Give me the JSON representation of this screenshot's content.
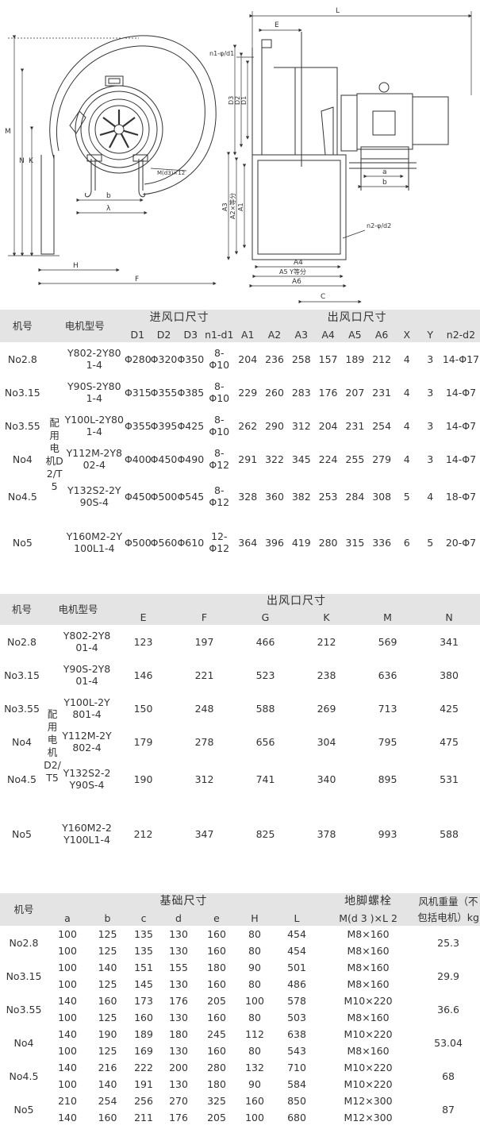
{
  "drawing": {
    "labels": {
      "L": "L",
      "E": "E",
      "n1d1": "n1-φ/d1",
      "D3": "D3",
      "D2": "D2",
      "D1": "D1",
      "M": "M",
      "N": "N",
      "K": "K",
      "Md3": "M(d3)×12",
      "b": "b",
      "lambda": "λ",
      "H": "H",
      "F": "F",
      "A3": "A3",
      "A2": "A2×等分",
      "A1": "A1",
      "a": "a",
      "b2": "b",
      "n2d2": "n2-φ/d2",
      "A4": "A4",
      "A5": "A5 Y等分",
      "A6": "A6",
      "C": "C"
    }
  },
  "table1": {
    "headers": {
      "model": "机号",
      "motor": "电机型号",
      "inlet": "进风口尺寸",
      "outlet": "出风口尺寸",
      "cols": [
        "D1",
        "D2",
        "D3",
        "n1-d1",
        "A1",
        "A2",
        "A3",
        "A4",
        "A5",
        "A6",
        "X",
        "Y",
        "n2-d2"
      ]
    },
    "config": "配用电机D2/T5",
    "rows": [
      {
        "model": "No2.8",
        "motor": "Y802-2Y801-4",
        "vals": [
          "Φ280",
          "Φ320",
          "Φ350",
          "8-Φ10",
          "204",
          "236",
          "258",
          "157",
          "189",
          "212",
          "4",
          "3",
          "14-Φ17"
        ]
      },
      {
        "model": "No3.15",
        "motor": "Y90S-2Y801-4",
        "vals": [
          "Φ315",
          "Φ355",
          "Φ385",
          "8-Φ10",
          "229",
          "260",
          "283",
          "176",
          "207",
          "231",
          "4",
          "3",
          "14-Φ7"
        ]
      },
      {
        "model": "No3.55",
        "motor": "Y100L-2Y801-4",
        "vals": [
          "Φ355",
          "Φ395",
          "Φ425",
          "8-Φ10",
          "262",
          "290",
          "312",
          "204",
          "231",
          "254",
          "4",
          "3",
          "14-Φ7"
        ]
      },
      {
        "model": "No4",
        "motor": "Y112M-2Y802-4",
        "vals": [
          "Φ400",
          "Φ450",
          "Φ490",
          "8-Φ12",
          "291",
          "322",
          "345",
          "224",
          "255",
          "279",
          "4",
          "3",
          "14-Φ7"
        ]
      },
      {
        "model": "No4.5",
        "motor": "Y132S2-2Y90S-4",
        "vals": [
          "Φ450",
          "Φ500",
          "Φ545",
          "8-Φ12",
          "328",
          "360",
          "382",
          "253",
          "284",
          "308",
          "5",
          "4",
          "18-Φ7"
        ]
      },
      {
        "model": "No5",
        "motor": "Y160M2-2Y100L1-4",
        "vals": [
          "Φ500",
          "Φ560",
          "Φ610",
          "12-Φ12",
          "364",
          "396",
          "419",
          "280",
          "315",
          "336",
          "6",
          "5",
          "20-Φ7"
        ]
      }
    ]
  },
  "table2": {
    "headers": {
      "model": "机号",
      "motor": "电机型号",
      "outlet": "出风口尺寸",
      "cols": [
        "E",
        "F",
        "G",
        "K",
        "M",
        "N"
      ]
    },
    "config": "配用电机D2/T5",
    "rows": [
      {
        "model": "No2.8",
        "motor": "Y802-2Y801-4",
        "vals": [
          "123",
          "197",
          "466",
          "212",
          "569",
          "341"
        ]
      },
      {
        "model": "No3.15",
        "motor": "Y90S-2Y801-4",
        "vals": [
          "146",
          "221",
          "523",
          "238",
          "636",
          "380"
        ]
      },
      {
        "model": "No3.55",
        "motor": "Y100L-2Y801-4",
        "vals": [
          "150",
          "248",
          "588",
          "269",
          "713",
          "425"
        ]
      },
      {
        "model": "No4",
        "motor": "Y112M-2Y802-4",
        "vals": [
          "179",
          "278",
          "656",
          "304",
          "795",
          "475"
        ]
      },
      {
        "model": "No4.5",
        "motor": "Y132S2-2Y90S-4",
        "vals": [
          "190",
          "312",
          "741",
          "340",
          "895",
          "531"
        ]
      },
      {
        "model": "No5",
        "motor": "Y160M2-2Y100L1-4",
        "vals": [
          "212",
          "347",
          "825",
          "378",
          "993",
          "588"
        ]
      }
    ]
  },
  "table3": {
    "headers": {
      "model": "机号",
      "base": "基础尺寸",
      "bolt": "地脚螺栓",
      "bolt_sub": "M(d 3 )×L 2",
      "weight": "风机重量（不包括电机）kg",
      "cols": [
        "a",
        "b",
        "c",
        "d",
        "e",
        "H",
        "L"
      ]
    },
    "groups": [
      {
        "model": "No2.8",
        "weight": "25.3",
        "rows": [
          {
            "vals": [
              "100",
              "125",
              "135",
              "130",
              "160",
              "80",
              "454"
            ],
            "bolt": "M8×160"
          },
          {
            "vals": [
              "100",
              "125",
              "135",
              "130",
              "160",
              "80",
              "454"
            ],
            "bolt": "M8×160"
          }
        ]
      },
      {
        "model": "No3.15",
        "weight": "29.9",
        "rows": [
          {
            "vals": [
              "100",
              "140",
              "151",
              "155",
              "180",
              "90",
              "501"
            ],
            "bolt": "M8×160"
          },
          {
            "vals": [
              "100",
              "125",
              "145",
              "130",
              "160",
              "80",
              "486"
            ],
            "bolt": "M8×160"
          }
        ]
      },
      {
        "model": "No3.55",
        "weight": "36.6",
        "rows": [
          {
            "vals": [
              "140",
              "160",
              "173",
              "176",
              "205",
              "100",
              "578"
            ],
            "bolt": "M10×220"
          },
          {
            "vals": [
              "100",
              "125",
              "160",
              "130",
              "160",
              "80",
              "503"
            ],
            "bolt": "M8×160"
          }
        ]
      },
      {
        "model": "No4",
        "weight": "53.04",
        "rows": [
          {
            "vals": [
              "140",
              "190",
              "189",
              "180",
              "245",
              "112",
              "638"
            ],
            "bolt": "M10×220"
          },
          {
            "vals": [
              "100",
              "125",
              "169",
              "130",
              "160",
              "80",
              "543"
            ],
            "bolt": "M8×160"
          }
        ]
      },
      {
        "model": "No4.5",
        "weight": "68",
        "rows": [
          {
            "vals": [
              "140",
              "216",
              "222",
              "200",
              "280",
              "132",
              "710"
            ],
            "bolt": "M10×220"
          },
          {
            "vals": [
              "100",
              "140",
              "191",
              "130",
              "180",
              "90",
              "584"
            ],
            "bolt": "M10×220"
          }
        ]
      },
      {
        "model": "No5",
        "weight": "87",
        "rows": [
          {
            "vals": [
              "210",
              "254",
              "256",
              "270",
              "325",
              "160",
              "850"
            ],
            "bolt": "M12×300"
          },
          {
            "vals": [
              "140",
              "160",
              "211",
              "176",
              "205",
              "100",
              "680"
            ],
            "bolt": "M12×300"
          }
        ]
      }
    ]
  }
}
